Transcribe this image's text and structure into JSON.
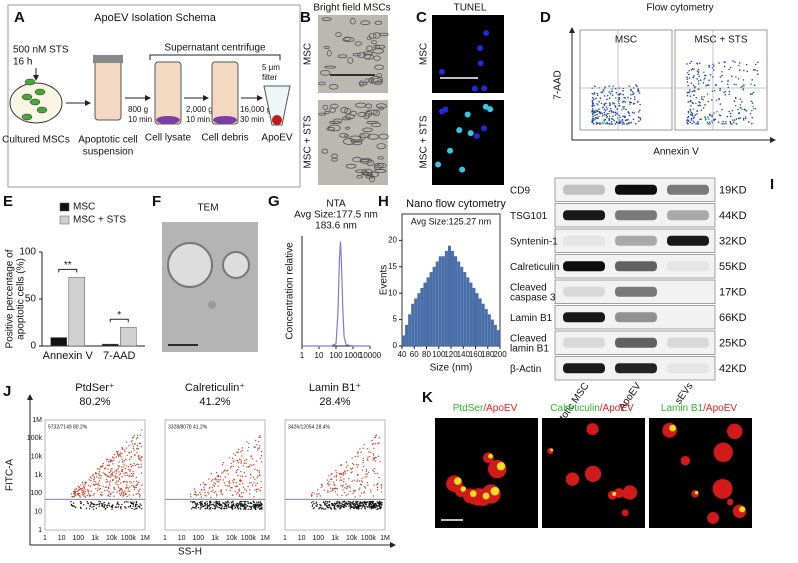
{
  "panels": {
    "A": {
      "label": "A",
      "title": "ApoEV Isolation Schema",
      "treatment": "500 nM STS",
      "duration": "16 h",
      "cells": "Cultured MSCs",
      "supernatant": "Supernatant centrifuge",
      "suspension": [
        "Apoptotic cell",
        "suspension"
      ],
      "spin1": [
        "800 g",
        "10 min"
      ],
      "spin2": [
        "2,000 g",
        "10 min"
      ],
      "spin3": [
        "16,000 g",
        "30 min"
      ],
      "filter": [
        "5 μm",
        "filter"
      ],
      "lysate": "Cell lysate",
      "debris": "Cell debris",
      "product": "ApoEV"
    },
    "B": {
      "label": "B",
      "title": "Bright field MSCs",
      "rows": [
        "MSC",
        "MSC + STS"
      ]
    },
    "C": {
      "label": "C",
      "title": "TUNEL",
      "rows": [
        "MSC",
        "MSC + STS"
      ]
    },
    "D": {
      "label": "D",
      "title": "Flow cytometry",
      "columns": [
        "MSC",
        "MSC + STS"
      ],
      "ylabel": "7-AAD",
      "xlabel": "Annexin V"
    },
    "F": {
      "label": "F",
      "title": "TEM"
    },
    "I": {
      "label": "I",
      "rows": [
        {
          "protein": [
            "CD9"
          ],
          "size": "19KD"
        },
        {
          "protein": [
            "TSG101"
          ],
          "size": "44KD"
        },
        {
          "protein": [
            "Syntenin-1"
          ],
          "size": "32KD"
        },
        {
          "protein": [
            "Calreticulin"
          ],
          "size": "55KD"
        },
        {
          "protein": [
            "Cleaved",
            "caspase 3"
          ],
          "size": "17KD"
        },
        {
          "protein": [
            "Lamin B1"
          ],
          "size": "66KD"
        },
        {
          "protein": [
            "Cleaved",
            "lamin B1"
          ],
          "size": "25KD"
        },
        {
          "protein": [
            "β-Actin"
          ],
          "size": "42KD"
        }
      ],
      "columns": [
        "Apoptotic MSC",
        "ApoEV",
        "sEVs"
      ]
    },
    "J": {
      "label": "J",
      "plots": [
        {
          "title": "PtdSer⁺",
          "percent": "80.2%",
          "gate": "5732/7149  80.2%"
        },
        {
          "title": "Calreticulin⁺",
          "percent": "41.2%",
          "gate": "3328/8078  41.2%"
        },
        {
          "title": "Lamin B1⁺",
          "percent": "28.4%",
          "gate": "3426/12054  28.4%"
        }
      ],
      "ticks": [
        "1",
        "10",
        "100",
        "1k",
        "10k",
        "100k",
        "1M"
      ],
      "ylabel": "FITC-A",
      "xlabel": "SS-H"
    },
    "K": {
      "label": "K",
      "images": [
        {
          "marker": "PtdSer",
          "vesicle": "/ApoEV"
        },
        {
          "marker": "Calreticulin",
          "vesicle": "/ApoEV"
        },
        {
          "marker": "Lamin B1",
          "vesicle": "/ApoEV"
        }
      ]
    }
  },
  "chart_data": [
    {
      "type": "bar",
      "label": "E",
      "ylabel": [
        "Positive percentage of",
        "apoptotic cells (%)"
      ],
      "categories": [
        "Annexin V",
        "7-AAD"
      ],
      "series": [
        {
          "name": "MSC",
          "color": "#111111",
          "values": [
            9,
            2
          ]
        },
        {
          "name": "MSC + STS",
          "color": "#d0d0d0",
          "values": [
            73,
            20
          ]
        }
      ],
      "ylim": [
        0,
        100
      ],
      "yticks": [
        0,
        50,
        100
      ],
      "annotations": [
        "**",
        "*"
      ]
    },
    {
      "type": "line",
      "label": "G",
      "title": "NTA",
      "subtitle": "Avg Size:177.5 nm",
      "annotation": "183.6 nm",
      "ylabel": "Concentration relative",
      "x": [
        1,
        10,
        50,
        100,
        130,
        160,
        183.6,
        210,
        250,
        300,
        400,
        1000,
        10000
      ],
      "values": [
        0,
        0,
        0,
        0.02,
        0.3,
        0.8,
        0.95,
        0.75,
        0.35,
        0.08,
        0.01,
        0,
        0
      ],
      "color": "#7b7bd6",
      "xscale": "log",
      "xlim": [
        1,
        10000
      ],
      "xticks": [
        1,
        10,
        100,
        1000,
        10000
      ],
      "ylim": [
        0,
        1
      ]
    },
    {
      "type": "histogram",
      "label": "H",
      "title": "Nano flow cytometry",
      "subtitle": "Avg Size:125.27 nm",
      "xlabel": "Size (nm)",
      "ylabel": "Events",
      "bins": [
        40,
        45,
        50,
        55,
        60,
        65,
        70,
        75,
        80,
        85,
        90,
        95,
        100,
        105,
        110,
        115,
        120,
        125,
        130,
        135,
        140,
        145,
        150,
        155,
        160,
        165,
        170,
        175,
        180,
        185,
        190,
        195,
        200
      ],
      "values": [
        2,
        4,
        6,
        8,
        9,
        10,
        11,
        12,
        13,
        14,
        15,
        16,
        17,
        17,
        18,
        19,
        18,
        17,
        16,
        15,
        14,
        13,
        12,
        11,
        10,
        9,
        8,
        7,
        6,
        5,
        4,
        3
      ],
      "color": "#4a6fa8",
      "xlim": [
        40,
        200
      ],
      "xticks": [
        40,
        60,
        80,
        100,
        120,
        140,
        160,
        180,
        200
      ],
      "ylim": [
        0,
        25
      ],
      "yticks": [
        0,
        5,
        10,
        15,
        20
      ]
    }
  ]
}
